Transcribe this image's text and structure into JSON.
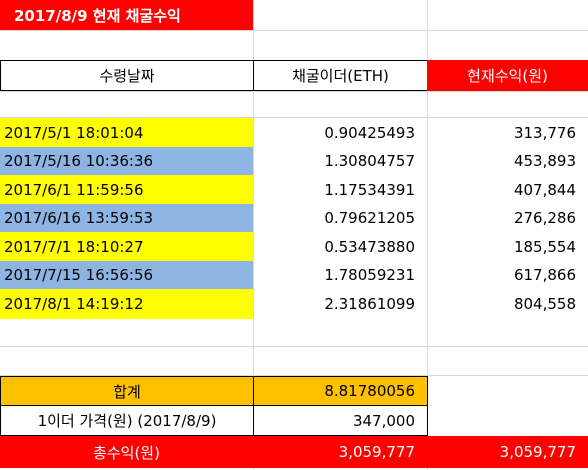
{
  "title": "2017/8/9 현재 채굴수익",
  "headers": {
    "date": "수령날짜",
    "eth": "채굴이더(ETH)",
    "krw": "현재수익(원)"
  },
  "rows": [
    {
      "date": "2017/5/1 18:01:04",
      "eth": "0.90425493",
      "krw": "313,776",
      "color": "yellow"
    },
    {
      "date": "2017/5/16 10:36:36",
      "eth": "1.30804757",
      "krw": "453,893",
      "color": "blue"
    },
    {
      "date": "2017/6/1 11:59:56",
      "eth": "1.17534391",
      "krw": "407,844",
      "color": "yellow"
    },
    {
      "date": "2017/6/16 13:59:53",
      "eth": "0.79621205",
      "krw": "276,286",
      "color": "blue"
    },
    {
      "date": "2017/7/1 18:10:27",
      "eth": "0.53473880",
      "krw": "185,554",
      "color": "yellow"
    },
    {
      "date": "2017/7/15 16:56:56",
      "eth": "1.78059231",
      "krw": "617,866",
      "color": "blue"
    },
    {
      "date": "2017/8/1 14:19:12",
      "eth": "2.31861099",
      "krw": "804,558",
      "color": "yellow"
    }
  ],
  "sum": {
    "label": "합계",
    "value": "8.81780056"
  },
  "price": {
    "label": "1이더 가격(원) (2017/8/9)",
    "value": "347,000"
  },
  "total": {
    "label": "총수익(원)",
    "value": "3,059,777",
    "value2": "3,059,777"
  },
  "colors": {
    "title_bg": "#ff0000",
    "yellow": "#ffff00",
    "blue": "#8db4e2",
    "orange": "#ffc000"
  }
}
